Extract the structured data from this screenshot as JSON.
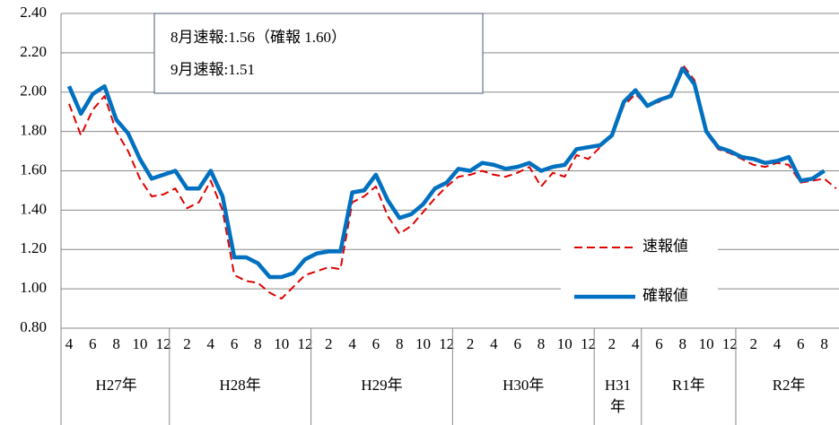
{
  "chart_data": {
    "type": "line",
    "annotations": [
      "8月速報:1.56（確報 1.60）",
      "9月速報:1.51"
    ],
    "groups": [
      {
        "label": "H27年",
        "categories": [
          "4",
          null,
          "6",
          null,
          "8",
          null,
          "10",
          null,
          "12"
        ]
      },
      {
        "label": "H28年",
        "categories": [
          null,
          "2",
          null,
          "4",
          null,
          "6",
          null,
          "8",
          null,
          "10",
          null,
          "12"
        ]
      },
      {
        "label": "H29年",
        "categories": [
          null,
          "2",
          null,
          "4",
          null,
          "6",
          null,
          "8",
          null,
          "10",
          null,
          "12"
        ]
      },
      {
        "label": "H30年",
        "categories": [
          null,
          "2",
          null,
          "4",
          null,
          "6",
          null,
          "8",
          null,
          "10",
          null,
          "12"
        ]
      },
      {
        "label": "H31年",
        "categories": [
          null,
          "2",
          null,
          "4"
        ]
      },
      {
        "label": "R1年",
        "categories": [
          null,
          "6",
          null,
          "8",
          null,
          "10",
          null,
          "12"
        ]
      },
      {
        "label": "R2年",
        "categories": [
          null,
          "2",
          null,
          "4",
          null,
          "6",
          null,
          "8",
          null
        ]
      }
    ],
    "series": [
      {
        "name": "速報値",
        "color": "#e00000",
        "dashed": true,
        "values": [
          1.94,
          1.78,
          1.91,
          1.98,
          1.8,
          1.7,
          1.56,
          1.47,
          1.48,
          1.51,
          1.41,
          1.44,
          1.55,
          1.4,
          1.07,
          1.04,
          1.03,
          0.98,
          0.95,
          1.01,
          1.07,
          1.09,
          1.11,
          1.1,
          1.44,
          1.47,
          1.52,
          1.37,
          1.28,
          1.32,
          1.39,
          1.46,
          1.52,
          1.57,
          1.58,
          1.6,
          1.58,
          1.57,
          1.59,
          1.62,
          1.52,
          1.59,
          1.57,
          1.68,
          1.66,
          1.72,
          1.78,
          1.93,
          1.99,
          1.93,
          1.95,
          1.99,
          2.14,
          2.06,
          1.79,
          1.71,
          1.69,
          1.66,
          1.63,
          1.62,
          1.64,
          1.63,
          1.54,
          1.55,
          1.56,
          1.51
        ]
      },
      {
        "name": "確報値",
        "color": "#0070c0",
        "dashed": false,
        "values": [
          2.03,
          1.89,
          1.99,
          2.03,
          1.86,
          1.79,
          1.66,
          1.56,
          1.58,
          1.6,
          1.51,
          1.51,
          1.6,
          1.47,
          1.16,
          1.16,
          1.13,
          1.06,
          1.06,
          1.08,
          1.15,
          1.18,
          1.19,
          1.19,
          1.49,
          1.5,
          1.58,
          1.45,
          1.36,
          1.38,
          1.43,
          1.51,
          1.54,
          1.61,
          1.6,
          1.64,
          1.63,
          1.61,
          1.62,
          1.64,
          1.6,
          1.62,
          1.63,
          1.71,
          1.72,
          1.73,
          1.78,
          1.95,
          2.01,
          1.93,
          1.96,
          1.98,
          2.12,
          2.04,
          1.8,
          1.72,
          1.7,
          1.67,
          1.66,
          1.64,
          1.65,
          1.67,
          1.55,
          1.56,
          1.6,
          null
        ]
      }
    ],
    "ylim": [
      0.8,
      2.4
    ],
    "yticks": [
      {
        "value": 0.8,
        "label": "0.80"
      },
      {
        "value": 1.0,
        "label": "1.00"
      },
      {
        "value": 1.2,
        "label": "1.20"
      },
      {
        "value": 1.4,
        "label": "1.40"
      },
      {
        "value": 1.6,
        "label": "1.60"
      },
      {
        "value": 1.8,
        "label": "1.80"
      },
      {
        "value": 2.0,
        "label": "2.00"
      },
      {
        "value": 2.2,
        "label": "2.20"
      },
      {
        "value": 2.4,
        "label": "2.40"
      }
    ],
    "grid": true,
    "legend": "right"
  }
}
